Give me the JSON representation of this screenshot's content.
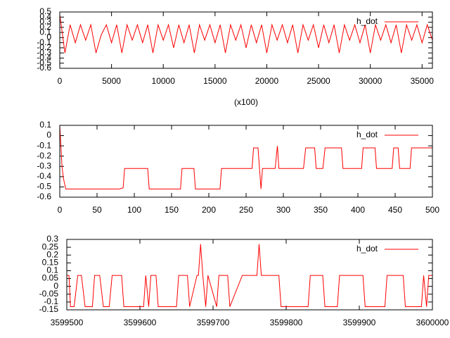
{
  "chart_data": [
    {
      "type": "line",
      "xlabel": "(x100)",
      "x": [
        0,
        500,
        1000,
        1500,
        2000,
        2500,
        3000,
        3500,
        4000,
        4500,
        5000,
        5500,
        6000,
        6500,
        7000,
        7500,
        8000,
        8500,
        9000,
        9500,
        10000,
        10500,
        11000,
        11500,
        12000,
        12500,
        13000,
        13500,
        14000,
        14500,
        15000,
        15500,
        16000,
        16500,
        17000,
        17500,
        18000,
        18500,
        19000,
        19500,
        20000,
        20500,
        21000,
        21500,
        22000,
        22500,
        23000,
        23500,
        24000,
        24500,
        25000,
        25500,
        26000,
        26500,
        27000,
        27500,
        28000,
        28500,
        29000,
        29500,
        30000,
        30500,
        31000,
        31500,
        32000,
        32500,
        33000,
        33500,
        34000,
        34500,
        35000,
        35500,
        36000
      ],
      "series": [
        {
          "name": "h_dot",
          "color": "#ff0000",
          "values": [
            0.45,
            -0.3,
            0.25,
            -0.1,
            0.25,
            -0.05,
            0.25,
            -0.3,
            0.05,
            0.25,
            -0.1,
            0.25,
            -0.3,
            0.25,
            -0.05,
            0.25,
            -0.1,
            0.25,
            -0.3,
            0.25,
            -0.05,
            0.25,
            -0.2,
            0.25,
            -0.1,
            0.25,
            -0.3,
            0.25,
            -0.05,
            0.25,
            -0.1,
            0.25,
            -0.3,
            0.25,
            -0.05,
            0.25,
            -0.2,
            0.25,
            -0.1,
            0.25,
            -0.3,
            0.25,
            -0.05,
            0.25,
            -0.1,
            0.25,
            -0.3,
            0.25,
            -0.05,
            0.25,
            -0.2,
            0.25,
            -0.1,
            0.25,
            -0.3,
            0.25,
            -0.05,
            0.25,
            -0.1,
            0.25,
            -0.3,
            0.25,
            -0.05,
            0.25,
            -0.1,
            0.25,
            -0.3,
            0.25,
            -0.05,
            0.25,
            -0.1,
            0.25,
            -0.05
          ]
        }
      ],
      "xlim": [
        0,
        36000
      ],
      "xticks": [
        0,
        5000,
        10000,
        15000,
        20000,
        25000,
        30000,
        35000
      ],
      "ylim": [
        -0.6,
        0.5
      ],
      "yticks": [
        0.5,
        0.4,
        0.3,
        0.2,
        0.1,
        0,
        -0.1,
        -0.2,
        -0.3,
        -0.4,
        -0.5,
        -0.6
      ],
      "legend": "top right"
    },
    {
      "type": "line",
      "x": [
        0,
        3,
        5,
        8,
        80,
        85,
        87,
        118,
        120,
        162,
        164,
        180,
        182,
        215,
        217,
        258,
        260,
        266,
        268,
        270,
        272,
        289,
        292,
        294,
        327,
        330,
        342,
        344,
        353,
        356,
        378,
        380,
        405,
        407,
        423,
        425,
        446,
        448,
        454,
        456,
        470,
        472,
        500
      ],
      "series": [
        {
          "name": "h_dot",
          "color": "#ff0000",
          "values": [
            0.1,
            -0.3,
            -0.42,
            -0.52,
            -0.52,
            -0.51,
            -0.32,
            -0.32,
            -0.52,
            -0.52,
            -0.32,
            -0.32,
            -0.52,
            -0.52,
            -0.32,
            -0.32,
            -0.12,
            -0.12,
            -0.32,
            -0.52,
            -0.32,
            -0.32,
            -0.1,
            -0.32,
            -0.32,
            -0.12,
            -0.12,
            -0.32,
            -0.32,
            -0.12,
            -0.12,
            -0.32,
            -0.32,
            -0.12,
            -0.12,
            -0.32,
            -0.32,
            -0.12,
            -0.12,
            -0.32,
            -0.32,
            -0.12,
            -0.12
          ]
        }
      ],
      "xlim": [
        0,
        500
      ],
      "xticks": [
        0,
        50,
        100,
        150,
        200,
        250,
        300,
        350,
        400,
        450,
        500
      ],
      "ylim": [
        -0.6,
        0.1
      ],
      "yticks": [
        0.1,
        0,
        -0.1,
        -0.2,
        -0.3,
        -0.4,
        -0.5,
        -0.6
      ],
      "legend": "top right"
    },
    {
      "type": "line",
      "x": [
        3599500,
        3599503,
        3599505,
        3599510,
        3599515,
        3599520,
        3599525,
        3599535,
        3599538,
        3599545,
        3599550,
        3599558,
        3599562,
        3599575,
        3599578,
        3599605,
        3599608,
        3599612,
        3599615,
        3599622,
        3599625,
        3599650,
        3599653,
        3599665,
        3599668,
        3599678,
        3599680,
        3599683,
        3599686,
        3599690,
        3599693,
        3599705,
        3599708,
        3599720,
        3599723,
        3599740,
        3599743,
        3599760,
        3599763,
        3599766,
        3599790,
        3599793,
        3599830,
        3599833,
        3599850,
        3599853,
        3599870,
        3599873,
        3599905,
        3599908,
        3599935,
        3599938,
        3599960,
        3599963,
        3599985,
        3599988,
        3599992,
        3599995,
        3600000
      ],
      "series": [
        {
          "name": "h_dot",
          "color": "#ff0000",
          "values": [
            0.07,
            0.07,
            -0.13,
            -0.13,
            0.07,
            0.07,
            -0.13,
            -0.13,
            0.07,
            0.07,
            -0.13,
            -0.13,
            0.07,
            0.07,
            -0.13,
            -0.13,
            0.07,
            -0.13,
            0.07,
            0.07,
            -0.13,
            -0.13,
            0.07,
            0.07,
            -0.13,
            0.07,
            0.07,
            0.27,
            0.07,
            -0.13,
            0.07,
            -0.13,
            0.07,
            0.07,
            -0.13,
            0.07,
            0.07,
            0.07,
            0.27,
            0.07,
            0.07,
            -0.13,
            -0.13,
            0.07,
            0.07,
            -0.13,
            -0.13,
            0.07,
            0.07,
            -0.13,
            -0.13,
            0.07,
            0.07,
            -0.13,
            -0.13,
            0.07,
            -0.13,
            0.07,
            0.07
          ]
        }
      ],
      "xlim": [
        3599500,
        3600000
      ],
      "xticks": [
        3599500,
        3599600,
        3599700,
        3599800,
        3599900,
        3600000
      ],
      "ylim": [
        -0.15,
        0.3
      ],
      "yticks": [
        0.3,
        0.25,
        0.2,
        0.15,
        0.1,
        0.05,
        0,
        -0.05,
        -0.1,
        -0.15
      ],
      "legend": "top right"
    }
  ]
}
